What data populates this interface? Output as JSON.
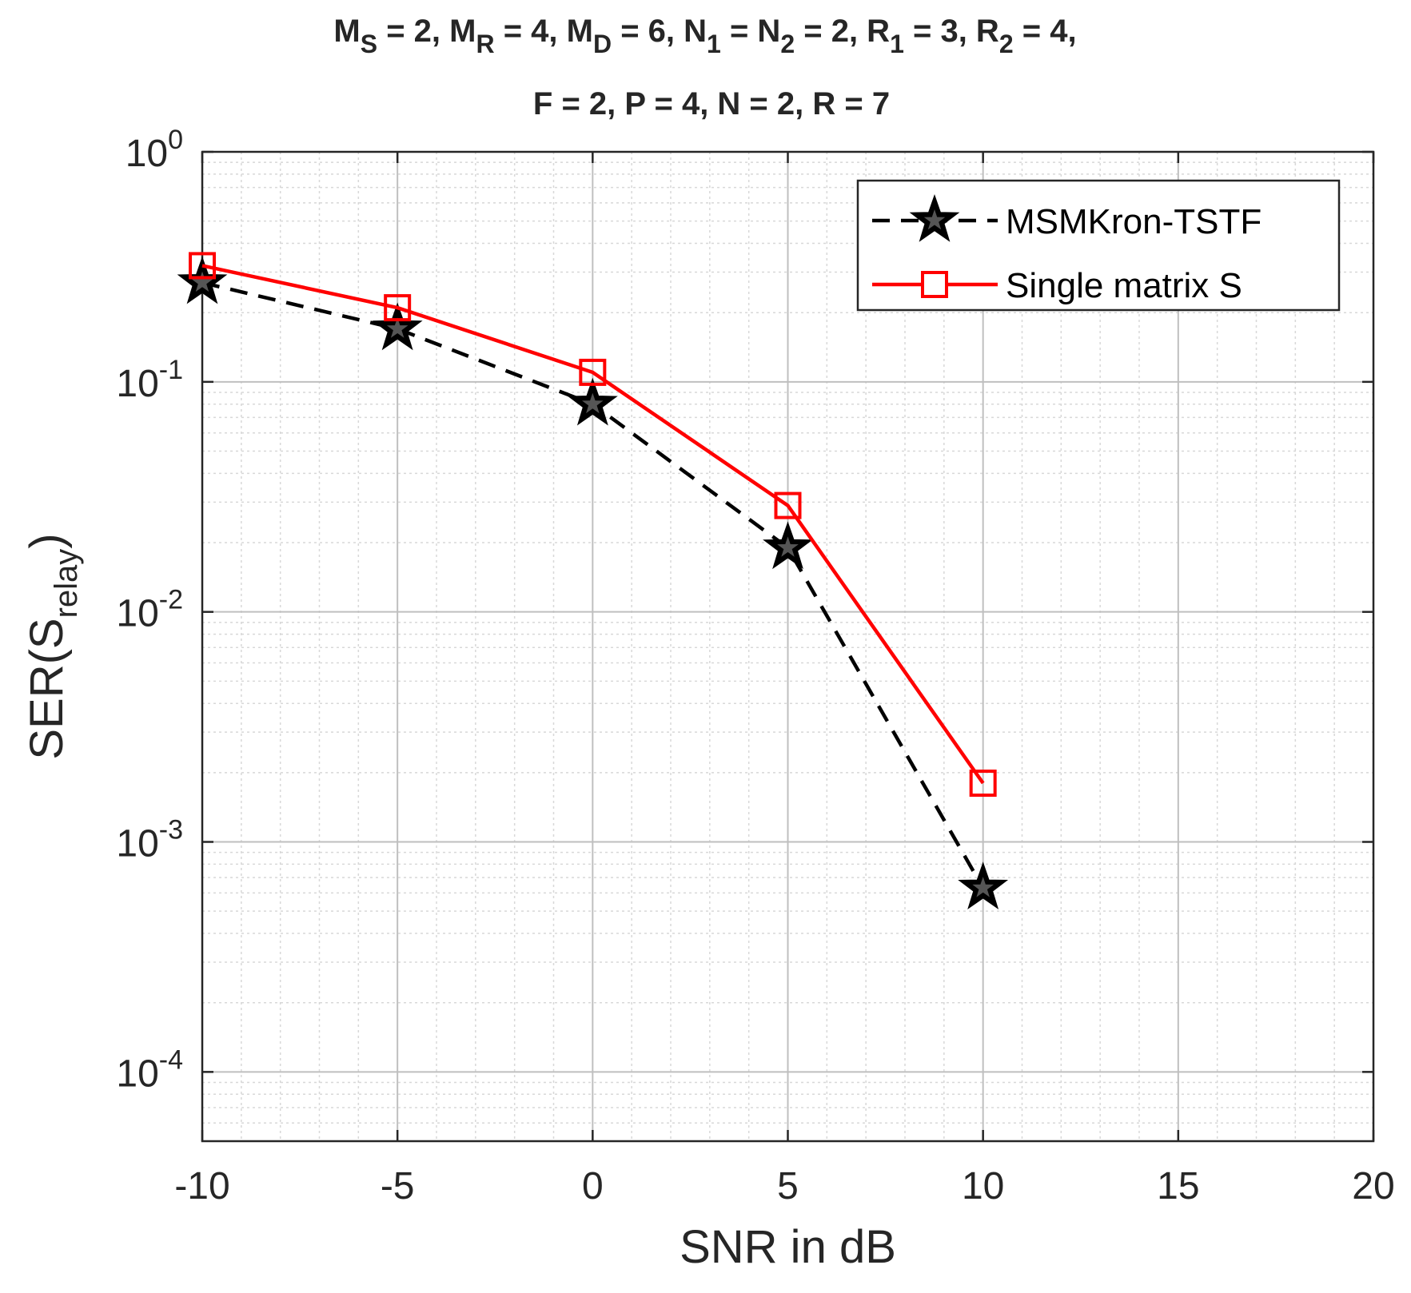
{
  "chart_data": {
    "type": "line",
    "title": {
      "line1": [
        {
          "t": "M"
        },
        {
          "t": "S",
          "sub": true
        },
        {
          "t": " = 2, M"
        },
        {
          "t": "R",
          "sub": true
        },
        {
          "t": " = 4, M"
        },
        {
          "t": "D",
          "sub": true
        },
        {
          "t": " = 6, N"
        },
        {
          "t": "1",
          "sub": true
        },
        {
          "t": " = N"
        },
        {
          "t": "2",
          "sub": true
        },
        {
          "t": " = 2, R"
        },
        {
          "t": "1",
          "sub": true
        },
        {
          "t": " = 3, R"
        },
        {
          "t": "2",
          "sub": true
        },
        {
          "t": " = 4,"
        }
      ],
      "line2": "F = 2, P = 4, N = 2, R = 7"
    },
    "xlabel": "SNR in dB",
    "ylabel": {
      "main": "SER(S",
      "sub": "relay",
      "close": ")"
    },
    "xlim": [
      -10,
      20
    ],
    "xticks": [
      -10,
      -5,
      0,
      5,
      10,
      15,
      20
    ],
    "ylim": [
      5e-05,
      1
    ],
    "yscale": "log",
    "yticks": [
      {
        "value": 1,
        "base": "10",
        "exp": "0"
      },
      {
        "value": 0.1,
        "base": "10",
        "exp": "-1"
      },
      {
        "value": 0.01,
        "base": "10",
        "exp": "-2"
      },
      {
        "value": 0.001,
        "base": "10",
        "exp": "-3"
      },
      {
        "value": 0.0001,
        "base": "10",
        "exp": "-4"
      }
    ],
    "grid": true,
    "legend_position": "top-right",
    "series": [
      {
        "name": "MSMKron-TSTF",
        "color": "#000000",
        "line_style": "dashed",
        "marker": "star",
        "x": [
          -10,
          -5,
          0,
          5,
          10
        ],
        "y": [
          0.27,
          0.17,
          0.08,
          0.019,
          0.00063
        ]
      },
      {
        "name": "Single matrix S",
        "color": "#ff0000",
        "line_style": "solid",
        "marker": "square",
        "x": [
          -10,
          -5,
          0,
          5,
          10
        ],
        "y": [
          0.32,
          0.21,
          0.11,
          0.029,
          0.0018
        ]
      }
    ]
  }
}
